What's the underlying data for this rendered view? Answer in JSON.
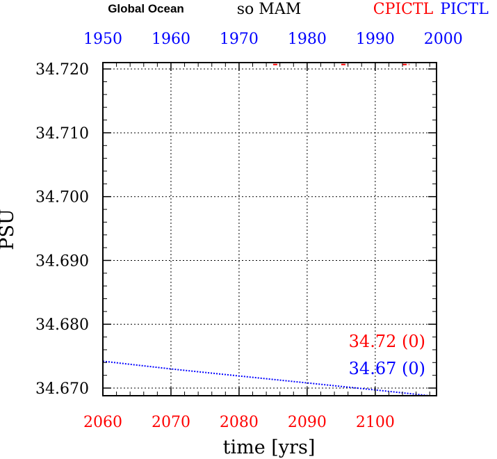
{
  "header": {
    "region": "Global Ocean",
    "variable": "so MAM",
    "exp1": "CPICTL",
    "exp2": "PICTL"
  },
  "colors": {
    "exp1": "#ff0000",
    "exp2": "#0000ff",
    "axis": "#000000",
    "grid": "#000000"
  },
  "chart_data": {
    "type": "line",
    "title": "so MAM",
    "xlabel": "time [yrs]",
    "ylabel": "PSU",
    "grid": true,
    "x_bottom": {
      "range": [
        2060,
        2109
      ],
      "ticks": [
        2060,
        2070,
        2080,
        2090,
        2100
      ],
      "tick_labels": [
        "2060",
        "2070",
        "2080",
        "2090",
        "2100"
      ],
      "color": "#ff0000"
    },
    "x_top": {
      "range": [
        1950,
        1999
      ],
      "ticks": [
        1950,
        1960,
        1970,
        1980,
        1990,
        2000
      ],
      "tick_labels": [
        "1950",
        "1960",
        "1970",
        "1980",
        "1990",
        "2000"
      ],
      "color": "#0000ff"
    },
    "y": {
      "range": [
        34.6688,
        34.721
      ],
      "ticks": [
        34.67,
        34.68,
        34.69,
        34.7,
        34.71,
        34.72
      ],
      "tick_labels": [
        "34.670",
        "34.680",
        "34.690",
        "34.700",
        "34.710",
        "34.720"
      ]
    },
    "series": [
      {
        "name": "CPICTL",
        "axis": "bottom",
        "color": "#ff0000",
        "style": "dashed",
        "segments": [
          [
            [
              2085.0,
              34.7207
            ],
            [
              2086.0,
              34.7207
            ]
          ],
          [
            [
              2095.0,
              34.7207
            ],
            [
              2096.0,
              34.7207
            ]
          ],
          [
            [
              2104.0,
              34.7207
            ],
            [
              2105.0,
              34.7207
            ]
          ]
        ]
      },
      {
        "name": "PICTL",
        "axis": "top",
        "color": "#0000ff",
        "style": "dotted",
        "segments": [
          [
            [
              1950,
              34.6742
            ],
            [
              1960,
              34.673
            ],
            [
              1970,
              34.6719
            ],
            [
              1980,
              34.6708
            ],
            [
              1990,
              34.6697
            ],
            [
              1998,
              34.6688
            ]
          ]
        ]
      }
    ],
    "annotations": [
      {
        "text": "34.72 (0)",
        "color": "#ff0000"
      },
      {
        "text": "34.67 (0)",
        "color": "#0000ff"
      }
    ]
  }
}
